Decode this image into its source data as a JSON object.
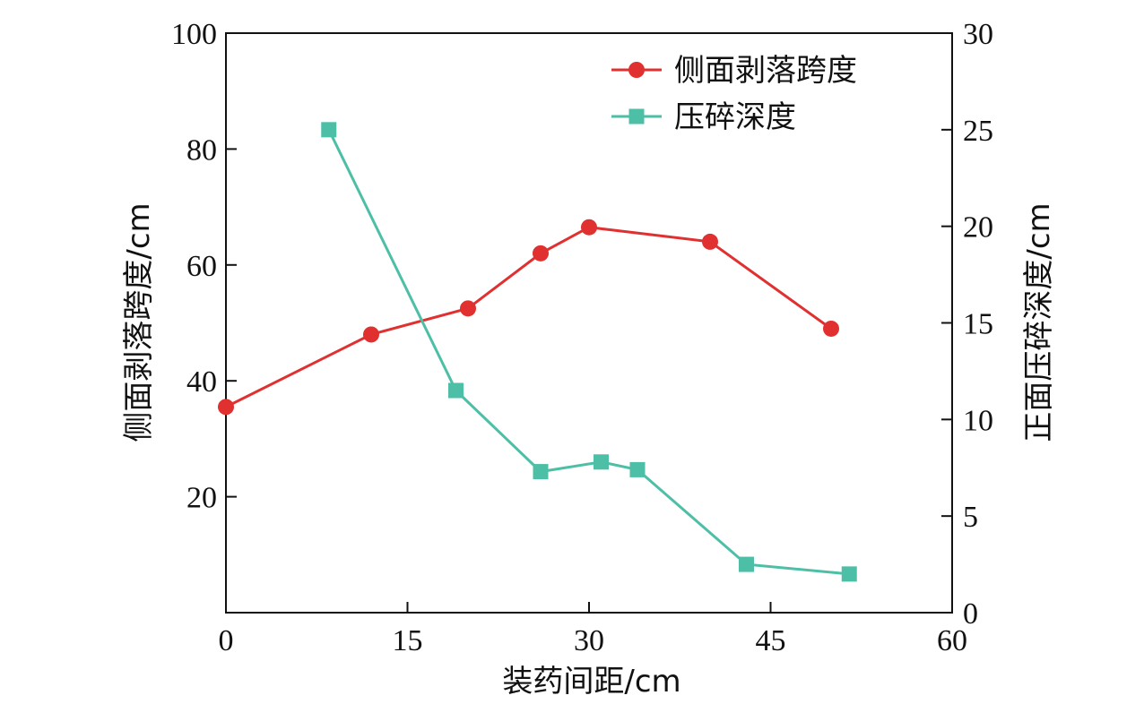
{
  "chart_data": {
    "type": "line",
    "xlabel": "装药间距/cm",
    "ylabel_left": "侧面剥落跨度/cm",
    "ylabel_right": "正面压碎深度/cm",
    "xlim": [
      0,
      60
    ],
    "ylim_left": [
      0,
      100
    ],
    "ylim_right": [
      0,
      30
    ],
    "x_ticks": [
      0,
      15,
      30,
      45,
      60
    ],
    "y_left_ticks": [
      20,
      40,
      60,
      80,
      100
    ],
    "y_right_ticks": [
      0,
      5,
      10,
      15,
      20,
      25,
      30
    ],
    "legend_position": "top-right",
    "grid": false,
    "series": [
      {
        "name": "侧面剥落跨度",
        "axis": "left",
        "color": "#e03030",
        "marker": "circle",
        "x": [
          0,
          12,
          20,
          26,
          30,
          40,
          50
        ],
        "y": [
          35.5,
          48,
          52.5,
          62,
          66.5,
          64,
          49
        ]
      },
      {
        "name": "压碎深度",
        "axis": "right",
        "color": "#4dbfa6",
        "marker": "square",
        "x": [
          8.5,
          19,
          26,
          31,
          34,
          43,
          51.5
        ],
        "y": [
          25,
          11.5,
          7.3,
          7.8,
          7.4,
          2.5,
          2
        ]
      }
    ]
  }
}
